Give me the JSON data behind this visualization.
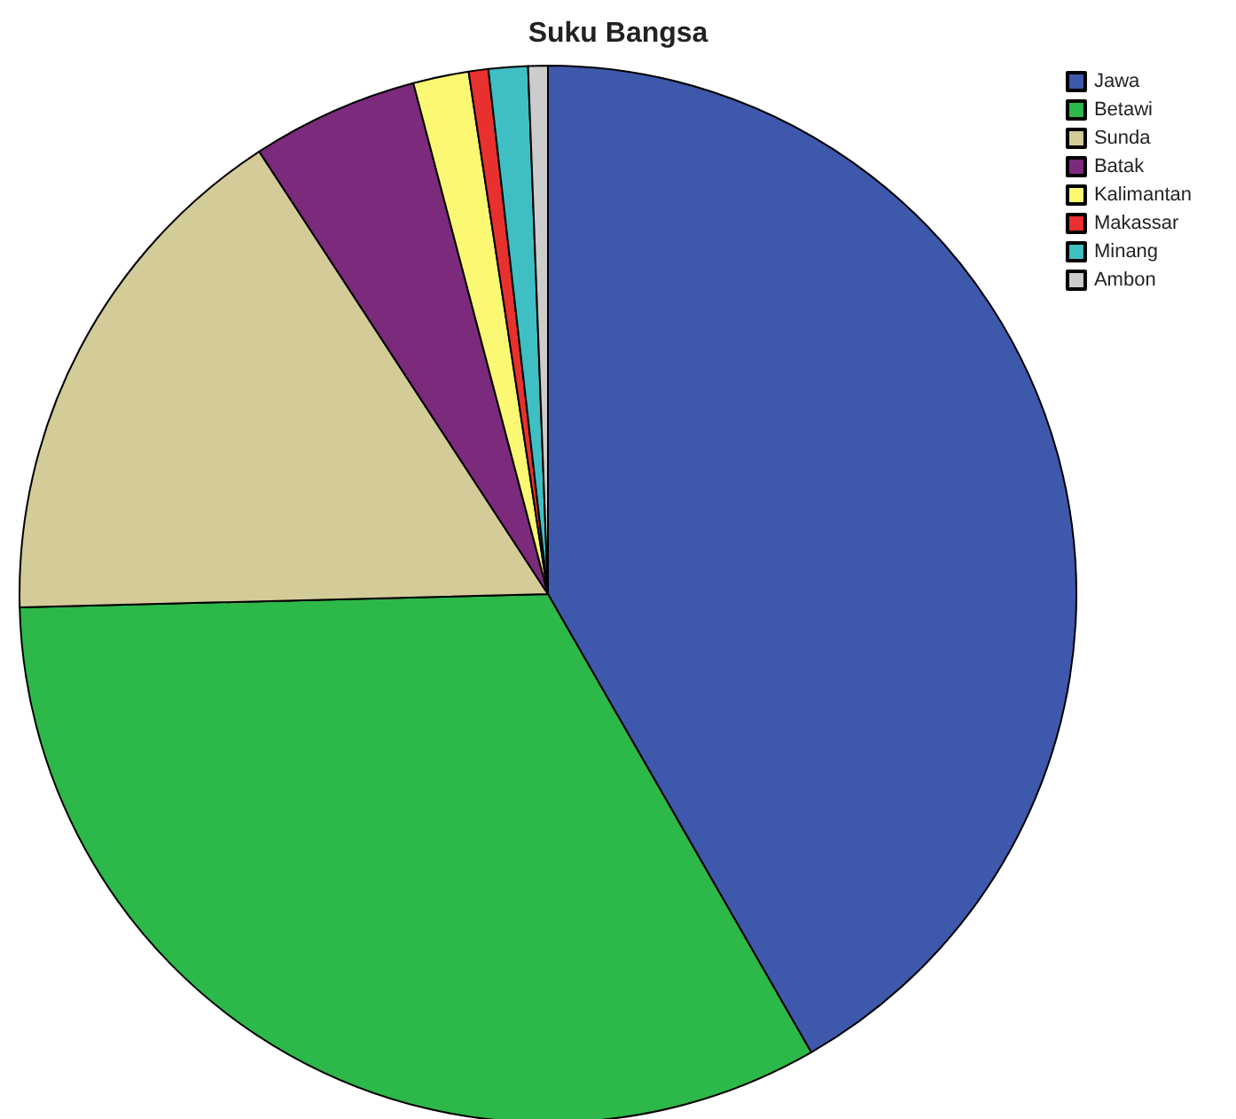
{
  "chart_data": {
    "type": "pie",
    "title": "Suku Bangsa",
    "categories": [
      "Jawa",
      "Betawi",
      "Sunda",
      "Batak",
      "Kalimantan",
      "Makassar",
      "Minang",
      "Ambon"
    ],
    "values": [
      41.7,
      32.9,
      16.2,
      5.1,
      1.7,
      0.6,
      1.2,
      0.6
    ],
    "colors": [
      "#3e58ac",
      "#2db84a",
      "#d3cb98",
      "#7b2a7c",
      "#fbf873",
      "#e8302e",
      "#3fbfc3",
      "#cccccc"
    ],
    "legend": "top right"
  }
}
